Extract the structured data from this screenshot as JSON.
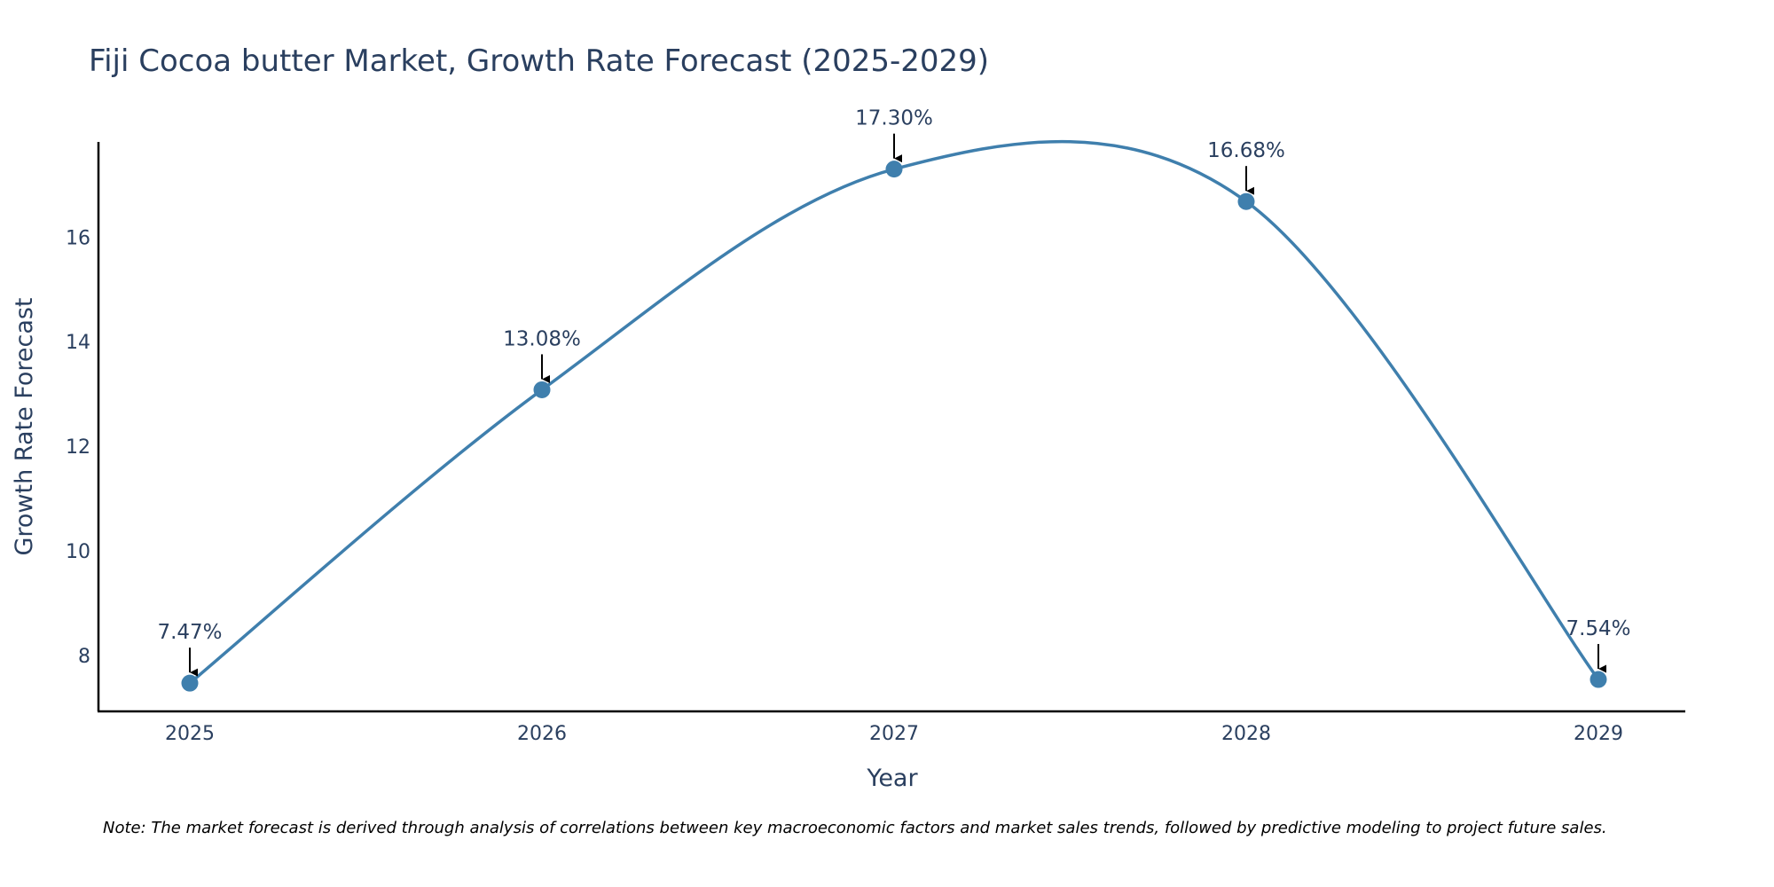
{
  "chart_data": {
    "type": "line",
    "title": "Fiji Cocoa butter Market, Growth Rate Forecast (2025-2029)",
    "xlabel": "Year",
    "ylabel": "Growth Rate Forecast",
    "categories": [
      "2025",
      "2026",
      "2027",
      "2028",
      "2029"
    ],
    "series": [
      {
        "name": "Growth Rate Forecast",
        "values": [
          7.47,
          13.08,
          17.3,
          16.68,
          7.54
        ],
        "labels": [
          "7.47%",
          "13.08%",
          "17.30%",
          "16.68%",
          "7.54%"
        ]
      }
    ],
    "yticks": [
      8,
      10,
      12,
      14,
      16
    ],
    "ytick_labels": [
      "8",
      "10",
      "12",
      "14",
      "16"
    ],
    "ylim": [
      6.93,
      17.82
    ],
    "grid": false,
    "line_color": "#3f7fad",
    "marker_color": "#3f7fad",
    "note": "Note: The market forecast is derived through analysis of correlations between key macroeconomic factors and market sales trends, followed by predictive modeling to project future sales."
  }
}
